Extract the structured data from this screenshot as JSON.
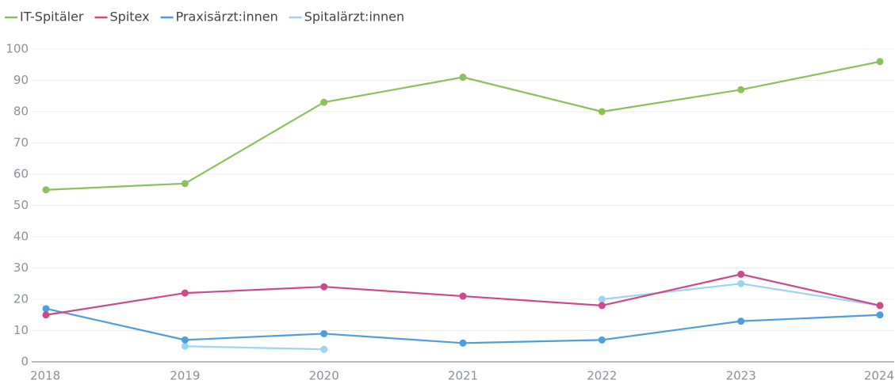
{
  "chart_data": {
    "type": "line",
    "categories": [
      "2018",
      "2019",
      "2020",
      "2021",
      "2022",
      "2023",
      "2024"
    ],
    "series": [
      {
        "name": "IT-Spitäler",
        "color": "#8bc158",
        "values": [
          55,
          57,
          83,
          91,
          80,
          87,
          96
        ]
      },
      {
        "name": "Spitex",
        "color": "#cc4a8a",
        "values": [
          15,
          22,
          24,
          21,
          18,
          28,
          18
        ]
      },
      {
        "name": "Praxisärzt:innen",
        "color": "#4d9de0",
        "values": [
          17,
          7,
          9,
          6,
          7,
          13,
          15
        ]
      },
      {
        "name": "Spitalärzt:innen",
        "color": "#9ad6f0",
        "values": [
          null,
          5,
          4,
          null,
          20,
          25,
          18
        ]
      }
    ],
    "ylim": [
      0,
      100
    ],
    "yticks": [
      0,
      10,
      20,
      30,
      40,
      50,
      60,
      70,
      80,
      90,
      100
    ],
    "grid": true,
    "legend": "top-left"
  }
}
